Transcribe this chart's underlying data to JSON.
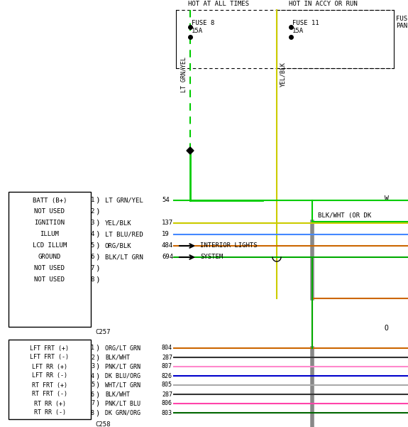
{
  "bg_color": "#ffffff",
  "fuse_box1_label": "HOT AT ALL TIMES",
  "fuse_box2_label": "HOT IN ACCY OR RUN",
  "fuse_panel_label": "FUSE\nPANEL",
  "fuse8_label": "FUSE 8\n15A",
  "fuse11_label": "FUSE 11\n15A",
  "wire_ltgrnyel_label": "LT GRN/YEL",
  "wire_yelblk_label": "YEL/BLK",
  "connector1_label": "C257",
  "connector2_label": "C258",
  "connector1_pins": [
    {
      "num": "1",
      "wire": "LT GRN/YEL",
      "circuit": "54",
      "func": "BATT (B+)"
    },
    {
      "num": "2",
      "wire": "",
      "circuit": "",
      "func": "NOT USED"
    },
    {
      "num": "3",
      "wire": "YEL/BLK",
      "circuit": "137",
      "func": "IGNITION"
    },
    {
      "num": "4",
      "wire": "LT BLU/RED",
      "circuit": "19",
      "func": "ILLUM"
    },
    {
      "num": "5",
      "wire": "ORG/BLK",
      "circuit": "484",
      "func": "LCD ILLUM"
    },
    {
      "num": "6",
      "wire": "BLK/LT GRN",
      "circuit": "694",
      "func": "GROUND"
    },
    {
      "num": "7",
      "wire": "",
      "circuit": "",
      "func": "NOT USED"
    },
    {
      "num": "8",
      "wire": "",
      "circuit": "",
      "func": "NOT USED"
    }
  ],
  "connector2_pins": [
    {
      "num": "1",
      "wire": "ORG/LT GRN",
      "circuit": "804",
      "func": "LFT FRT (+)"
    },
    {
      "num": "2",
      "wire": "BLK/WHT",
      "circuit": "287",
      "func": "LFT FRT (-)"
    },
    {
      "num": "3",
      "wire": "PNK/LT GRN",
      "circuit": "807",
      "func": "LFT RR (+)"
    },
    {
      "num": "4",
      "wire": "DK BLU/ORG",
      "circuit": "826",
      "func": "LFT RR (-)"
    },
    {
      "num": "5",
      "wire": "WHT/LT GRN",
      "circuit": "805",
      "func": "RT FRT (+)"
    },
    {
      "num": "6",
      "wire": "BLK/WHT",
      "circuit": "287",
      "func": "RT FRT (-)"
    },
    {
      "num": "7",
      "wire": "PNK/LT BLU",
      "circuit": "806",
      "func": "RT RR (+)"
    },
    {
      "num": "8",
      "wire": "DK GRN/ORG",
      "circuit": "803",
      "func": "RT RR (-)"
    }
  ],
  "c257_wire_colors": [
    "#00cc00",
    null,
    "#cccc00",
    "#4488ff",
    "#cc6600",
    "#00aa00",
    null,
    null
  ],
  "c258_wire_colors": [
    "#cc6600",
    "#333333",
    "#ff88cc",
    "#0000cc",
    "#aaaaaa",
    "#333333",
    "#ff44aa",
    "#006600"
  ],
  "interior_lights_lines": [
    "INTERIOR LIGHTS",
    "SYSTEM"
  ],
  "blkwht_label": "BLK/WHT (OR DK",
  "right_label": "W",
  "right_label2": "O"
}
